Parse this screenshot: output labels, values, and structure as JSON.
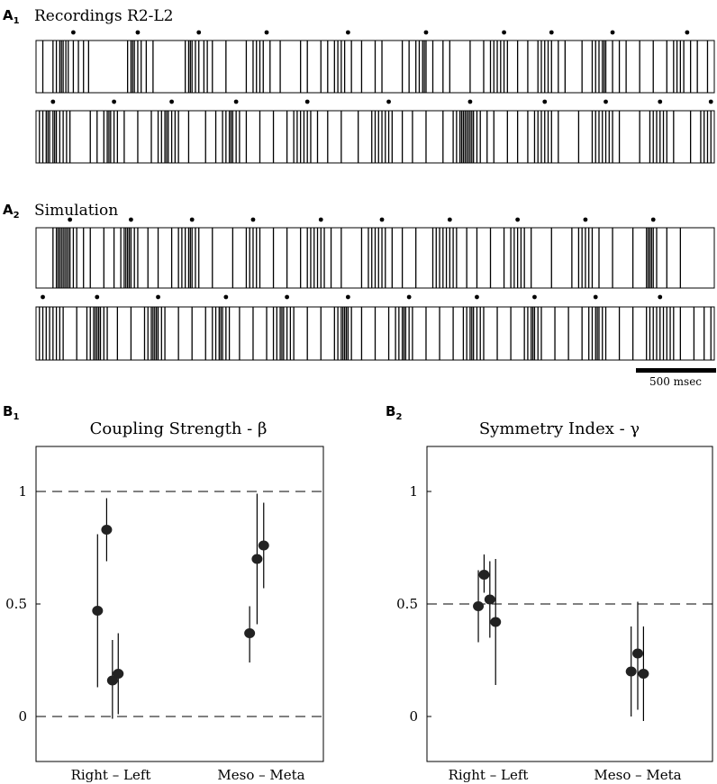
{
  "panel_labels": {
    "a1": "A",
    "a1_sub": "1",
    "a2": "A",
    "a2_sub": "2",
    "b1": "B",
    "b1_sub": "1",
    "b2": "B",
    "b2_sub": "2"
  },
  "section_a1_title": "Recordings R2-L2",
  "section_a2_title": "Simulation",
  "scale_bar_label": "500 msec",
  "colors": {
    "ink": "#000000",
    "marker": "#222222",
    "background": "#ffffff"
  },
  "raster_rows": [
    {
      "id": "recordings-row-1",
      "burst_markers": [
        0.11,
        0.3,
        0.48,
        0.68,
        0.92,
        1.15,
        1.38,
        1.52,
        1.7,
        1.92
      ],
      "spike_times": [
        0.02,
        0.05,
        0.06,
        0.07,
        0.075,
        0.08,
        0.088,
        0.095,
        0.11,
        0.125,
        0.14,
        0.155,
        0.27,
        0.28,
        0.285,
        0.29,
        0.3,
        0.31,
        0.325,
        0.345,
        0.44,
        0.45,
        0.455,
        0.46,
        0.47,
        0.48,
        0.495,
        0.505,
        0.52,
        0.56,
        0.62,
        0.64,
        0.65,
        0.66,
        0.67,
        0.69,
        0.72,
        0.78,
        0.8,
        0.84,
        0.86,
        0.88,
        0.89,
        0.9,
        0.91,
        0.93,
        0.96,
        1.0,
        1.02,
        1.08,
        1.1,
        1.12,
        1.13,
        1.14,
        1.145,
        1.15,
        1.17,
        1.2,
        1.22,
        1.28,
        1.32,
        1.34,
        1.35,
        1.36,
        1.37,
        1.38,
        1.39,
        1.42,
        1.45,
        1.48,
        1.49,
        1.5,
        1.51,
        1.52,
        1.54,
        1.56,
        1.61,
        1.64,
        1.65,
        1.66,
        1.67,
        1.675,
        1.68,
        1.7,
        1.72,
        1.74,
        1.78,
        1.82,
        1.86,
        1.88,
        1.89,
        1.9,
        1.91,
        1.93,
        1.95,
        1.98
      ]
    },
    {
      "id": "recordings-row-2",
      "burst_markers": [
        0.05,
        0.23,
        0.4,
        0.59,
        0.8,
        1.04,
        1.28,
        1.5,
        1.68,
        1.84,
        1.99
      ],
      "spike_times": [
        0.01,
        0.02,
        0.03,
        0.035,
        0.04,
        0.05,
        0.055,
        0.06,
        0.07,
        0.08,
        0.09,
        0.1,
        0.16,
        0.18,
        0.2,
        0.21,
        0.215,
        0.22,
        0.23,
        0.24,
        0.26,
        0.3,
        0.34,
        0.36,
        0.37,
        0.38,
        0.385,
        0.39,
        0.4,
        0.41,
        0.42,
        0.45,
        0.5,
        0.53,
        0.55,
        0.56,
        0.57,
        0.575,
        0.58,
        0.59,
        0.6,
        0.62,
        0.66,
        0.7,
        0.74,
        0.76,
        0.77,
        0.78,
        0.79,
        0.8,
        0.81,
        0.83,
        0.86,
        0.9,
        0.95,
        0.99,
        1.0,
        1.01,
        1.02,
        1.03,
        1.04,
        1.05,
        1.08,
        1.11,
        1.15,
        1.2,
        1.23,
        1.24,
        1.25,
        1.255,
        1.26,
        1.265,
        1.27,
        1.275,
        1.28,
        1.285,
        1.29,
        1.3,
        1.31,
        1.33,
        1.35,
        1.39,
        1.42,
        1.45,
        1.47,
        1.48,
        1.49,
        1.5,
        1.51,
        1.52,
        1.54,
        1.6,
        1.64,
        1.65,
        1.66,
        1.67,
        1.68,
        1.69,
        1.7,
        1.72,
        1.78,
        1.81,
        1.82,
        1.83,
        1.84,
        1.85,
        1.86,
        1.88,
        1.93,
        1.96,
        1.97,
        1.98,
        1.99
      ]
    },
    {
      "id": "simulation-row-1",
      "burst_markers": [
        0.1,
        0.28,
        0.46,
        0.64,
        0.84,
        1.02,
        1.22,
        1.42,
        1.62,
        1.82
      ],
      "spike_times": [
        0.05,
        0.06,
        0.065,
        0.07,
        0.075,
        0.08,
        0.085,
        0.09,
        0.095,
        0.1,
        0.11,
        0.12,
        0.14,
        0.16,
        0.2,
        0.23,
        0.25,
        0.26,
        0.265,
        0.27,
        0.275,
        0.28,
        0.29,
        0.3,
        0.33,
        0.36,
        0.4,
        0.42,
        0.43,
        0.44,
        0.45,
        0.455,
        0.46,
        0.47,
        0.48,
        0.52,
        0.58,
        0.62,
        0.63,
        0.64,
        0.65,
        0.66,
        0.7,
        0.74,
        0.78,
        0.8,
        0.81,
        0.82,
        0.83,
        0.84,
        0.85,
        0.87,
        0.9,
        0.96,
        0.98,
        0.99,
        1.0,
        1.01,
        1.02,
        1.03,
        1.05,
        1.08,
        1.12,
        1.17,
        1.18,
        1.19,
        1.2,
        1.21,
        1.22,
        1.23,
        1.24,
        1.27,
        1.3,
        1.34,
        1.38,
        1.4,
        1.41,
        1.42,
        1.43,
        1.44,
        1.46,
        1.52,
        1.58,
        1.6,
        1.61,
        1.62,
        1.63,
        1.64,
        1.66,
        1.7,
        1.76,
        1.8,
        1.805,
        1.81,
        1.815,
        1.82,
        1.83,
        1.86,
        1.9
      ]
    },
    {
      "id": "simulation-row-2",
      "burst_markers": [
        0.02,
        0.18,
        0.36,
        0.56,
        0.74,
        0.92,
        1.1,
        1.3,
        1.47,
        1.65,
        1.84
      ],
      "spike_times": [
        0.01,
        0.02,
        0.03,
        0.04,
        0.05,
        0.06,
        0.07,
        0.08,
        0.12,
        0.15,
        0.16,
        0.17,
        0.175,
        0.18,
        0.185,
        0.19,
        0.2,
        0.21,
        0.24,
        0.28,
        0.32,
        0.33,
        0.34,
        0.345,
        0.35,
        0.355,
        0.36,
        0.37,
        0.38,
        0.42,
        0.46,
        0.5,
        0.52,
        0.53,
        0.54,
        0.545,
        0.55,
        0.56,
        0.57,
        0.6,
        0.64,
        0.68,
        0.7,
        0.71,
        0.72,
        0.725,
        0.73,
        0.74,
        0.75,
        0.76,
        0.8,
        0.84,
        0.88,
        0.89,
        0.9,
        0.905,
        0.91,
        0.915,
        0.92,
        0.93,
        0.96,
        1.0,
        1.04,
        1.06,
        1.07,
        1.08,
        1.085,
        1.09,
        1.1,
        1.11,
        1.15,
        1.19,
        1.23,
        1.26,
        1.27,
        1.28,
        1.285,
        1.29,
        1.3,
        1.31,
        1.32,
        1.36,
        1.4,
        1.44,
        1.45,
        1.46,
        1.465,
        1.47,
        1.48,
        1.49,
        1.53,
        1.57,
        1.61,
        1.63,
        1.64,
        1.65,
        1.655,
        1.66,
        1.67,
        1.68,
        1.72,
        1.76,
        1.8,
        1.81,
        1.82,
        1.83,
        1.84,
        1.85,
        1.86,
        1.87,
        1.88,
        1.9,
        1.94,
        1.97,
        1.99
      ]
    }
  ],
  "chart_data": [
    {
      "type": "scatter",
      "title": "Coupling Strength - β",
      "xlabel": "",
      "ylabel": "",
      "ylim": [
        -0.2,
        1.2
      ],
      "yticks": [
        "0",
        "0.5",
        "1"
      ],
      "categories": [
        "Right – Left",
        "Meso – Meta"
      ],
      "reference_lines": [
        0,
        1
      ],
      "points": [
        {
          "category": "Right – Left",
          "offset": -0.16,
          "y": 0.47,
          "err_low": 0.13,
          "err_high": 0.81
        },
        {
          "category": "Right – Left",
          "offset": -0.05,
          "y": 0.83,
          "err_low": 0.69,
          "err_high": 0.97
        },
        {
          "category": "Right – Left",
          "offset": 0.02,
          "y": 0.16,
          "err_low": -0.01,
          "err_high": 0.34
        },
        {
          "category": "Right – Left",
          "offset": 0.09,
          "y": 0.19,
          "err_low": 0.01,
          "err_high": 0.37
        },
        {
          "category": "Meso – Meta",
          "offset": -0.14,
          "y": 0.37,
          "err_low": 0.24,
          "err_high": 0.49
        },
        {
          "category": "Meso – Meta",
          "offset": -0.05,
          "y": 0.7,
          "err_low": 0.41,
          "err_high": 0.99
        },
        {
          "category": "Meso – Meta",
          "offset": 0.03,
          "y": 0.76,
          "err_low": 0.57,
          "err_high": 0.95
        }
      ]
    },
    {
      "type": "scatter",
      "title": "Symmetry Index - γ",
      "xlabel": "",
      "ylabel": "",
      "ylim": [
        -0.2,
        1.2
      ],
      "yticks": [
        "0",
        "0.5",
        "1"
      ],
      "categories": [
        "Right – Left",
        "Meso – Meta"
      ],
      "reference_lines": [
        0.5
      ],
      "points": [
        {
          "category": "Right – Left",
          "offset": -0.12,
          "y": 0.49,
          "err_low": 0.33,
          "err_high": 0.65
        },
        {
          "category": "Right – Left",
          "offset": -0.05,
          "y": 0.63,
          "err_low": 0.55,
          "err_high": 0.72
        },
        {
          "category": "Right – Left",
          "offset": 0.02,
          "y": 0.52,
          "err_low": 0.35,
          "err_high": 0.69
        },
        {
          "category": "Right – Left",
          "offset": 0.09,
          "y": 0.42,
          "err_low": 0.14,
          "err_high": 0.7
        },
        {
          "category": "Meso – Meta",
          "offset": -0.08,
          "y": 0.2,
          "err_low": 0.0,
          "err_high": 0.4
        },
        {
          "category": "Meso – Meta",
          "offset": 0.0,
          "y": 0.28,
          "err_low": 0.03,
          "err_high": 0.51
        },
        {
          "category": "Meso – Meta",
          "offset": 0.07,
          "y": 0.19,
          "err_low": -0.02,
          "err_high": 0.4
        }
      ]
    }
  ]
}
